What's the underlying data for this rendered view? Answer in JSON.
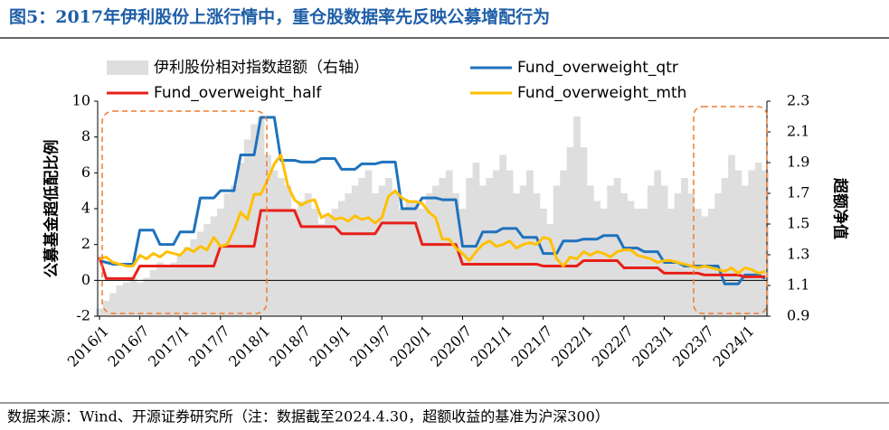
{
  "chart_data": {
    "type": "line",
    "title": "图5：2017年伊利股份上涨行情中，重仓股数据率先反映公募增配行为",
    "source": "数据来源：Wind、开源证券研究所（注：数据截至2024.4.30，超额收益的基准为沪深300）",
    "ylabel": "公募基金超低配比例",
    "y2label": "超额净值",
    "categories": [
      "2016/1",
      null,
      null,
      null,
      null,
      null,
      "2016/7",
      null,
      null,
      null,
      null,
      null,
      "2017/1",
      null,
      null,
      null,
      null,
      null,
      "2017/7",
      null,
      null,
      null,
      null,
      null,
      "2018/1",
      null,
      null,
      null,
      null,
      null,
      "2018/7",
      null,
      null,
      null,
      null,
      null,
      "2019/1",
      null,
      null,
      null,
      null,
      null,
      "2019/7",
      null,
      null,
      null,
      null,
      null,
      "2020/1",
      null,
      null,
      null,
      null,
      null,
      "2020/7",
      null,
      null,
      null,
      null,
      null,
      "2021/1",
      null,
      null,
      null,
      null,
      null,
      "2021/7",
      null,
      null,
      null,
      null,
      null,
      "2022/1",
      null,
      null,
      null,
      null,
      null,
      "2022/7",
      null,
      null,
      null,
      null,
      null,
      "2023/1",
      null,
      null,
      null,
      null,
      null,
      "2023/7",
      null,
      null,
      null,
      null,
      null,
      "2024/1",
      null,
      null,
      null
    ],
    "series": [
      {
        "name": "伊利股份相对指数超额（右轴）",
        "type": "area",
        "axis": "y2",
        "color": "#dedede",
        "values": [
          0.95,
          1.0,
          1.05,
          1.1,
          1.12,
          1.15,
          1.12,
          1.15,
          1.2,
          1.25,
          1.22,
          1.25,
          1.3,
          1.35,
          1.4,
          1.45,
          1.5,
          1.55,
          1.6,
          1.7,
          1.75,
          1.9,
          2.05,
          2.15,
          2.2,
          1.95,
          1.85,
          1.8,
          1.75,
          1.6,
          1.65,
          1.7,
          1.6,
          1.5,
          1.55,
          1.6,
          1.65,
          1.7,
          1.75,
          1.8,
          1.85,
          1.7,
          1.75,
          1.8,
          1.7,
          1.6,
          1.65,
          1.65,
          1.6,
          1.7,
          1.75,
          1.8,
          1.85,
          1.7,
          1.6,
          1.8,
          1.9,
          1.75,
          1.8,
          1.85,
          1.95,
          1.85,
          1.7,
          1.75,
          1.85,
          1.7,
          1.6,
          1.5,
          1.75,
          1.85,
          2.0,
          2.2,
          2.0,
          1.75,
          1.65,
          1.6,
          1.75,
          1.8,
          1.7,
          1.65,
          1.6,
          1.6,
          1.75,
          1.85,
          1.75,
          1.6,
          1.7,
          1.8,
          1.7,
          1.6,
          1.55,
          1.6,
          1.7,
          1.8,
          1.95,
          1.85,
          1.75,
          1.85,
          1.9,
          1.85
        ]
      },
      {
        "name": "Fund_overweight_qtr",
        "type": "line",
        "color": "#1f72bd",
        "values": [
          1.1,
          1.0,
          0.9,
          0.9,
          0.9,
          0.9,
          2.8,
          2.8,
          2.8,
          2.0,
          2.0,
          2.0,
          2.7,
          2.7,
          2.7,
          4.6,
          4.6,
          4.6,
          5.0,
          5.0,
          5.0,
          7.0,
          7.0,
          7.0,
          9.1,
          9.1,
          9.1,
          6.7,
          6.7,
          6.7,
          6.6,
          6.6,
          6.6,
          6.8,
          6.8,
          6.8,
          6.2,
          6.2,
          6.2,
          6.5,
          6.5,
          6.5,
          6.6,
          6.6,
          6.6,
          4.0,
          4.0,
          4.0,
          4.6,
          4.6,
          4.6,
          4.5,
          4.5,
          4.5,
          1.9,
          1.9,
          1.9,
          2.7,
          2.7,
          2.7,
          2.9,
          2.9,
          2.9,
          2.4,
          2.4,
          2.4,
          1.5,
          1.5,
          1.5,
          2.2,
          2.2,
          2.2,
          2.3,
          2.3,
          2.3,
          2.5,
          2.5,
          2.5,
          1.8,
          1.8,
          1.8,
          1.6,
          1.6,
          1.6,
          1.0,
          1.0,
          1.0,
          0.8,
          0.8,
          0.8,
          0.8,
          0.8,
          0.8,
          -0.2,
          -0.2,
          -0.2,
          0.3,
          0.3,
          0.3,
          0.1
        ]
      },
      {
        "name": "Fund_overweight_half",
        "type": "line",
        "color": "#e8201a",
        "values": [
          1.3,
          0.1,
          0.1,
          0.1,
          0.1,
          0.1,
          0.8,
          0.8,
          0.8,
          0.8,
          0.8,
          0.8,
          0.8,
          0.8,
          0.8,
          0.8,
          0.8,
          0.8,
          1.9,
          1.9,
          1.9,
          1.9,
          1.9,
          1.9,
          3.9,
          3.9,
          3.9,
          3.9,
          3.9,
          3.9,
          3.0,
          3.0,
          3.0,
          3.0,
          3.0,
          3.0,
          2.6,
          2.6,
          2.6,
          2.6,
          2.6,
          2.6,
          3.2,
          3.2,
          3.2,
          3.2,
          3.2,
          3.2,
          2.0,
          2.0,
          2.0,
          2.0,
          2.0,
          2.0,
          0.9,
          0.9,
          0.9,
          0.9,
          0.9,
          0.9,
          0.9,
          0.9,
          0.9,
          0.9,
          0.9,
          0.9,
          0.8,
          0.8,
          0.8,
          0.8,
          0.8,
          0.8,
          1.1,
          1.1,
          1.1,
          1.1,
          1.1,
          1.1,
          0.7,
          0.7,
          0.7,
          0.7,
          0.7,
          0.7,
          0.4,
          0.4,
          0.4,
          0.4,
          0.4,
          0.4,
          0.3,
          0.3,
          0.3,
          0.3,
          0.3,
          0.3,
          0.2,
          0.2,
          0.2,
          0.2
        ]
      },
      {
        "name": "Fund_overweight_mth",
        "type": "line",
        "color": "#ffc000",
        "values": [
          1.2,
          1.3,
          1.0,
          0.9,
          0.8,
          0.8,
          1.4,
          1.2,
          1.5,
          1.3,
          1.6,
          1.5,
          1.4,
          1.8,
          1.6,
          1.9,
          1.7,
          2.4,
          1.9,
          2.0,
          2.8,
          3.8,
          3.4,
          4.8,
          4.8,
          5.6,
          6.5,
          7.0,
          5.3,
          4.5,
          4.2,
          4.4,
          4.5,
          3.5,
          3.7,
          3.4,
          3.5,
          3.3,
          3.6,
          3.4,
          3.5,
          3.2,
          3.5,
          4.7,
          5.0,
          4.6,
          4.4,
          4.4,
          4.3,
          3.8,
          3.5,
          2.3,
          2.3,
          1.8,
          1.5,
          1.1,
          1.6,
          2.0,
          2.2,
          1.9,
          2.0,
          2.2,
          1.8,
          2.0,
          2.1,
          2.0,
          2.4,
          2.3,
          1.2,
          0.8,
          1.3,
          1.2,
          1.6,
          1.4,
          1.6,
          1.5,
          1.3,
          1.6,
          1.7,
          1.7,
          1.4,
          1.3,
          1.2,
          1.0,
          1.1,
          1.1,
          1.0,
          0.9,
          0.8,
          0.7,
          0.8,
          0.7,
          0.6,
          0.5,
          0.7,
          0.4,
          0.7,
          0.6,
          0.4,
          0.5
        ]
      }
    ],
    "ylim": [
      -2,
      10
    ],
    "yticks": [
      -2,
      0,
      2,
      4,
      6,
      8,
      10
    ],
    "y2lim": [
      0.9,
      2.3
    ],
    "y2ticks": [
      0.9,
      1.1,
      1.3,
      1.5,
      1.7,
      1.9,
      2.1,
      2.3
    ],
    "title_color": "#1f5fa8"
  }
}
